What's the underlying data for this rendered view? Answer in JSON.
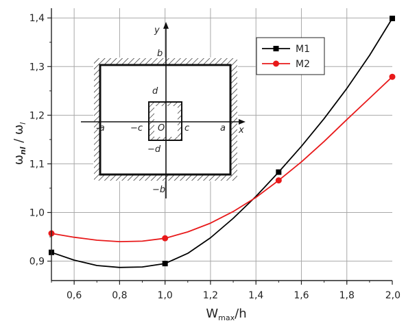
{
  "chart_data": {
    "type": "line",
    "title": "",
    "xlabel": {
      "main": "W",
      "sub": "max",
      "tail": "/h"
    },
    "ylabel": {
      "pre": "ω",
      "sub1": "nl",
      "mid": " / ω",
      "sub2": "l"
    },
    "xlim": [
      0.5,
      2.0
    ],
    "ylim": [
      0.86,
      1.42
    ],
    "xticks": [
      0.6,
      0.8,
      1.0,
      1.2,
      1.4,
      1.6,
      1.8,
      2.0
    ],
    "xtick_labels": [
      "0,6",
      "0,8",
      "1,0",
      "1,2",
      "1,4",
      "1,6",
      "1,8",
      "2,0"
    ],
    "yticks": [
      0.9,
      1.0,
      1.1,
      1.2,
      1.3,
      1.4
    ],
    "ytick_labels": [
      "0,9",
      "1,0",
      "1,1",
      "1,2",
      "1,3",
      "1,4"
    ],
    "grid": true,
    "legend_position": "top-right",
    "series": [
      {
        "name": "M1",
        "color": "#000000",
        "marker": "square",
        "x": [
          0.5,
          1.0,
          1.5,
          2.0
        ],
        "y": [
          0.918,
          0.895,
          1.083,
          1.399
        ],
        "curve_x": [
          0.5,
          0.6,
          0.7,
          0.8,
          0.9,
          1.0,
          1.1,
          1.2,
          1.3,
          1.4,
          1.5,
          1.6,
          1.7,
          1.8,
          1.9,
          2.0
        ],
        "curve_y": [
          0.918,
          0.902,
          0.891,
          0.887,
          0.888,
          0.895,
          0.916,
          0.948,
          0.988,
          1.033,
          1.083,
          1.136,
          1.193,
          1.255,
          1.323,
          1.399
        ]
      },
      {
        "name": "M2",
        "color": "#e8191a",
        "marker": "circle",
        "x": [
          0.5,
          1.0,
          1.5,
          2.0
        ],
        "y": [
          0.957,
          0.947,
          1.066,
          1.279
        ],
        "curve_x": [
          0.5,
          0.6,
          0.7,
          0.8,
          0.9,
          1.0,
          1.1,
          1.2,
          1.3,
          1.4,
          1.5,
          1.6,
          1.7,
          1.8,
          1.9,
          2.0
        ],
        "curve_y": [
          0.957,
          0.949,
          0.943,
          0.94,
          0.941,
          0.947,
          0.96,
          0.978,
          1.002,
          1.031,
          1.066,
          1.104,
          1.146,
          1.191,
          1.235,
          1.279
        ]
      }
    ],
    "inset": {
      "axis_labels": {
        "x": "x",
        "y": "y",
        "origin": "O"
      },
      "labels": {
        "a_pos": "a",
        "a_neg": "-a",
        "b_pos": "b",
        "b_neg": "−b",
        "c_pos": "c",
        "c_neg": "−c",
        "d_pos": "d",
        "d_neg": "−d"
      }
    }
  }
}
